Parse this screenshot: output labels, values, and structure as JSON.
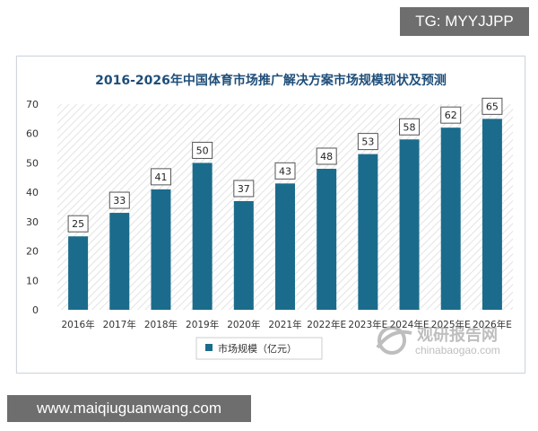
{
  "overlay": {
    "tg_badge": "TG: MYYJJPP",
    "url_badge": "www.maiqiuguanwang.com"
  },
  "watermark": {
    "cn": "观研报告网",
    "en": "chinabaogao.com",
    "icon": "globe-swoosh-icon"
  },
  "colors": {
    "bar": "#1b6c8c",
    "title": "#1f4e79",
    "hatch": "#e6e6e6"
  },
  "chart_data": {
    "type": "bar",
    "title": "2016-2026年中国体育市场推广解决方案市场规模现状及预测",
    "categories": [
      "2016年",
      "2017年",
      "2018年",
      "2019年",
      "2020年",
      "2021年",
      "2022年E",
      "2023年E",
      "2024年E",
      "2025年E",
      "2026年E"
    ],
    "series": [
      {
        "name": "市场规模（亿元）",
        "values": [
          25,
          33,
          41,
          50,
          37,
          43,
          48,
          53,
          58,
          62,
          65
        ]
      }
    ],
    "data_labels": [
      "25",
      "33",
      "41",
      "50",
      "37",
      "43",
      "48",
      "53",
      "58",
      "62",
      "65"
    ],
    "ylim": [
      0,
      70
    ],
    "yticks": [
      "0",
      "10",
      "20",
      "30",
      "40",
      "50",
      "60",
      "70"
    ],
    "grid": false,
    "legend_position": "bottom-left"
  }
}
